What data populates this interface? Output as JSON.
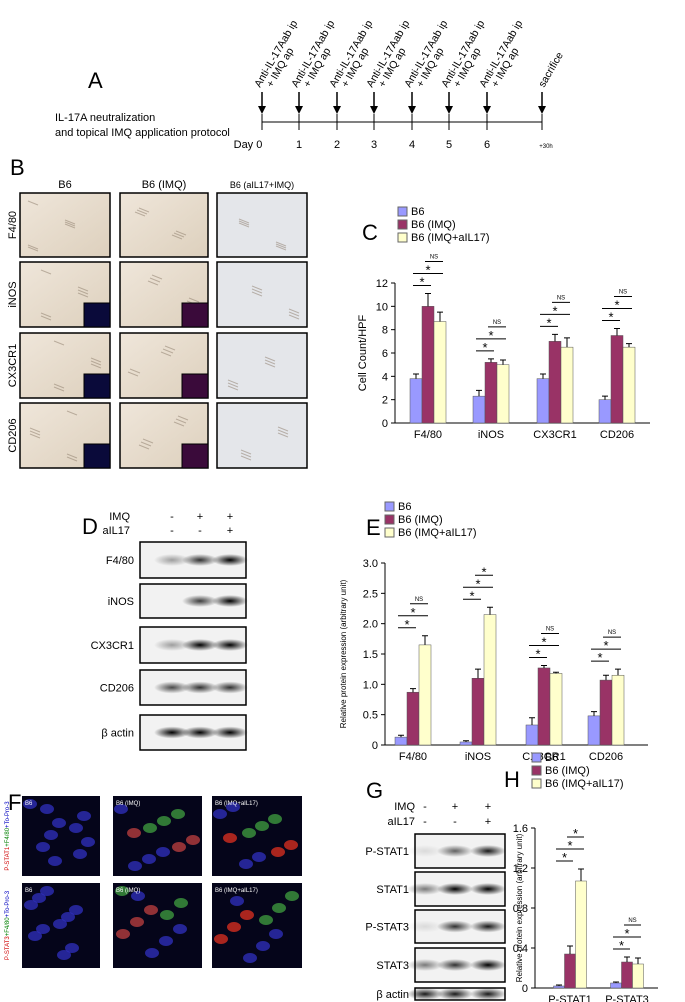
{
  "panel_labels": [
    "A",
    "B",
    "C",
    "D",
    "E",
    "F",
    "G",
    "H"
  ],
  "protocol": {
    "title_lines": [
      "IL-17A neutralization",
      "and topical IMQ application protocol"
    ],
    "treatment": [
      "Anti-IL-17Aab ip",
      "+ IMQ ap"
    ],
    "days": [
      "Day 0",
      "1",
      "2",
      "3",
      "4",
      "5",
      "6"
    ],
    "end_label": "sacrifice",
    "end_time": "+30h"
  },
  "histology": {
    "columns": [
      "B6",
      "B6 (IMQ)",
      "B6 (aIL17+IMQ)"
    ],
    "rows": [
      "F4/80",
      "iNOS",
      "CX3CR1",
      "CD206"
    ]
  },
  "western_d": {
    "conditions": [
      {
        "name": "IMQ",
        "signs": [
          "-",
          "+",
          "+"
        ]
      },
      {
        "name": "aIL17",
        "signs": [
          "-",
          "-",
          "+"
        ]
      }
    ],
    "proteins": [
      "F4/80",
      "iNOS",
      "CX3CR1",
      "CD206",
      "β actin"
    ]
  },
  "immunofluorescence": {
    "columns": [
      "B6",
      "B6 (IMQ)",
      "B6 (IMQ+aIL17)"
    ],
    "rows": [
      [
        "P-STAT1",
        "+F4/80",
        "+To-Pro-3"
      ],
      [
        "P-STAT3",
        "+F4/80",
        "+To-Pro-3"
      ]
    ]
  },
  "western_g": {
    "conditions": [
      {
        "name": "IMQ",
        "signs": [
          "-",
          "+",
          "+"
        ]
      },
      {
        "name": "aIL17",
        "signs": [
          "-",
          "-",
          "+"
        ]
      }
    ],
    "proteins": [
      "P-STAT1",
      "STAT1",
      "P-STAT3",
      "STAT3",
      "β actin"
    ]
  },
  "chart_data": [
    {
      "type": "bar",
      "ylabel": "Cell Count/HPF",
      "categories": [
        "F4/80",
        "iNOS",
        "CX3CR1",
        "CD206"
      ],
      "ylim": [
        0,
        12
      ],
      "yticks": [
        0,
        2,
        4,
        6,
        8,
        10,
        12
      ],
      "series": [
        {
          "name": "B6",
          "color": "#9999ff",
          "values": [
            3.8,
            2.3,
            3.8,
            2.0
          ],
          "errors": [
            0.4,
            0.5,
            0.4,
            0.3
          ]
        },
        {
          "name": "B6 (IMQ)",
          "color": "#993366",
          "values": [
            10.0,
            5.2,
            7.0,
            7.5
          ],
          "errors": [
            1.1,
            0.3,
            0.6,
            0.6
          ]
        },
        {
          "name": "B6 (IMQ+aIL17)",
          "color": "#ffffcc",
          "values": [
            8.7,
            5.0,
            6.5,
            6.5
          ],
          "errors": [
            0.8,
            0.4,
            0.8,
            0.3
          ]
        }
      ],
      "significance": [
        [
          "*",
          "*",
          "NS"
        ],
        [
          "*",
          "*",
          "NS"
        ],
        [
          "*",
          "*",
          "NS"
        ],
        [
          "*",
          "*",
          "NS"
        ]
      ]
    },
    {
      "type": "bar",
      "ylabel": "Relative protein expression (arbitrary unit)",
      "categories": [
        "F4/80",
        "iNOS",
        "CX3CR1",
        "CD206"
      ],
      "ylim": [
        0,
        3
      ],
      "yticks": [
        0,
        0.5,
        {
          "value": 1,
          "label": "1.0"
        },
        1.5,
        {
          "value": 2,
          "label": "2.0"
        },
        2.5,
        {
          "value": 3,
          "label": "3.0"
        }
      ],
      "series": [
        {
          "name": "B6",
          "color": "#9999ff",
          "values": [
            0.13,
            0.05,
            0.33,
            0.48
          ],
          "errors": [
            0.03,
            0.02,
            0.12,
            0.07
          ]
        },
        {
          "name": "B6 (IMQ)",
          "color": "#993366",
          "values": [
            0.87,
            1.1,
            1.27,
            1.07
          ],
          "errors": [
            0.06,
            0.15,
            0.04,
            0.08
          ]
        },
        {
          "name": "B6 (IMQ+aIL17)",
          "color": "#ffffcc",
          "values": [
            1.65,
            2.15,
            1.18,
            1.15
          ],
          "errors": [
            0.15,
            0.12,
            0.02,
            0.1
          ]
        }
      ],
      "significance": [
        [
          "*",
          "*",
          "NS"
        ],
        [
          "*",
          "*",
          "*"
        ],
        [
          "*",
          "*",
          "NS"
        ],
        [
          "*",
          "*",
          "NS"
        ]
      ]
    },
    {
      "type": "bar",
      "ylabel": "Relative protein expression (arbitrary unit)",
      "categories": [
        "P-STAT1",
        "P-STAT3"
      ],
      "ylim": [
        0,
        1.6
      ],
      "yticks": [
        0,
        0.4,
        0.8,
        1.2,
        1.6
      ],
      "series": [
        {
          "name": "B6",
          "color": "#9999ff",
          "values": [
            0.02,
            0.05
          ],
          "errors": [
            0.01,
            0.01
          ]
        },
        {
          "name": "B6 (IMQ)",
          "color": "#993366",
          "values": [
            0.34,
            0.26
          ],
          "errors": [
            0.08,
            0.05
          ]
        },
        {
          "name": "B6 (IMQ+aIL17)",
          "color": "#ffffcc",
          "values": [
            1.07,
            0.24
          ],
          "errors": [
            0.12,
            0.06
          ]
        }
      ],
      "significance": [
        [
          "*",
          "*",
          "*"
        ],
        [
          "*",
          "*",
          "NS"
        ]
      ]
    }
  ]
}
